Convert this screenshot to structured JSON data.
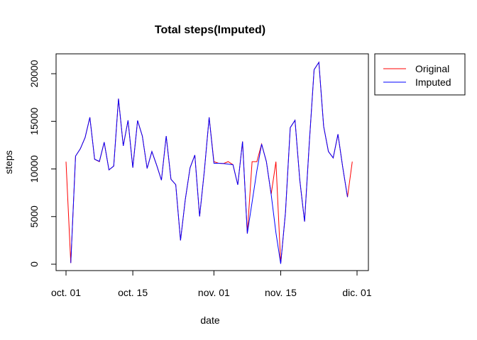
{
  "chart_data": {
    "type": "line",
    "title": "Total steps(Imputed)",
    "xlabel": "date",
    "ylabel": "steps",
    "x_ticks": [
      "oct. 01",
      "oct. 15",
      "nov. 01",
      "nov. 15",
      "dic. 01"
    ],
    "x_tick_days": [
      0,
      14,
      31,
      45,
      61
    ],
    "y_ticks": [
      0,
      5000,
      10000,
      15000,
      20000
    ],
    "y_tick_labels": [
      "0",
      "5000",
      "10000",
      "15000",
      "20000"
    ],
    "xlim": [
      0,
      60
    ],
    "ylim": [
      0,
      21194
    ],
    "legend_position": "top-right-outside",
    "series": [
      {
        "name": "Original",
        "color": "#ff0000",
        "values": [
          10766,
          126,
          11352,
          12116,
          13294,
          15420,
          11015,
          10766,
          12811,
          9900,
          10304,
          17382,
          12426,
          15098,
          10139,
          15084,
          13452,
          10056,
          11829,
          10395,
          8821,
          13460,
          8918,
          8355,
          2492,
          6778,
          10119,
          11458,
          5018,
          9819,
          15414,
          10766,
          10600,
          10571,
          10766,
          10439,
          8334,
          12883,
          3219,
          10766,
          10766,
          12608,
          10765,
          7336,
          10766,
          41,
          5441,
          14339,
          15110,
          8841,
          4472,
          12787,
          20427,
          21194,
          14478,
          11834,
          11162,
          13646,
          10183,
          7047,
          10766
        ]
      },
      {
        "name": "Imputed",
        "color": "#0000ff",
        "values": [
          null,
          126,
          11352,
          12116,
          13294,
          15420,
          11015,
          10800,
          12811,
          9900,
          10304,
          17382,
          12426,
          15098,
          10139,
          15084,
          13452,
          10056,
          11829,
          10395,
          8821,
          13460,
          8918,
          8355,
          2492,
          6778,
          10119,
          11458,
          5018,
          9819,
          15414,
          10600,
          10600,
          10571,
          10500,
          10439,
          8334,
          12883,
          3219,
          6500,
          9800,
          12608,
          10765,
          7336,
          3300,
          41,
          5441,
          14339,
          15110,
          8841,
          4472,
          12787,
          20427,
          21194,
          14478,
          11834,
          11162,
          13646,
          10183,
          7047,
          null
        ]
      }
    ]
  }
}
